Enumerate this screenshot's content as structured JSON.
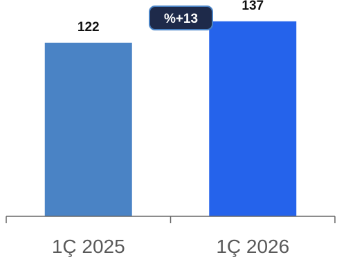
{
  "chart_data": {
    "type": "bar",
    "categories": [
      "1Ç 2025",
      "1Ç 2026"
    ],
    "values": [
      122,
      137
    ],
    "data_labels": [
      "122",
      "137"
    ],
    "bar_colors": [
      "#4a83c5",
      "#2563eb"
    ],
    "badge": {
      "text": "%+13",
      "background": "#1e2a4a",
      "border": "#4a83c5",
      "text_color": "#ffffff"
    },
    "axis_color": "#666666",
    "tick_label_color": "#595959",
    "data_label_color": "#111111",
    "ylim": [
      0,
      152
    ]
  }
}
